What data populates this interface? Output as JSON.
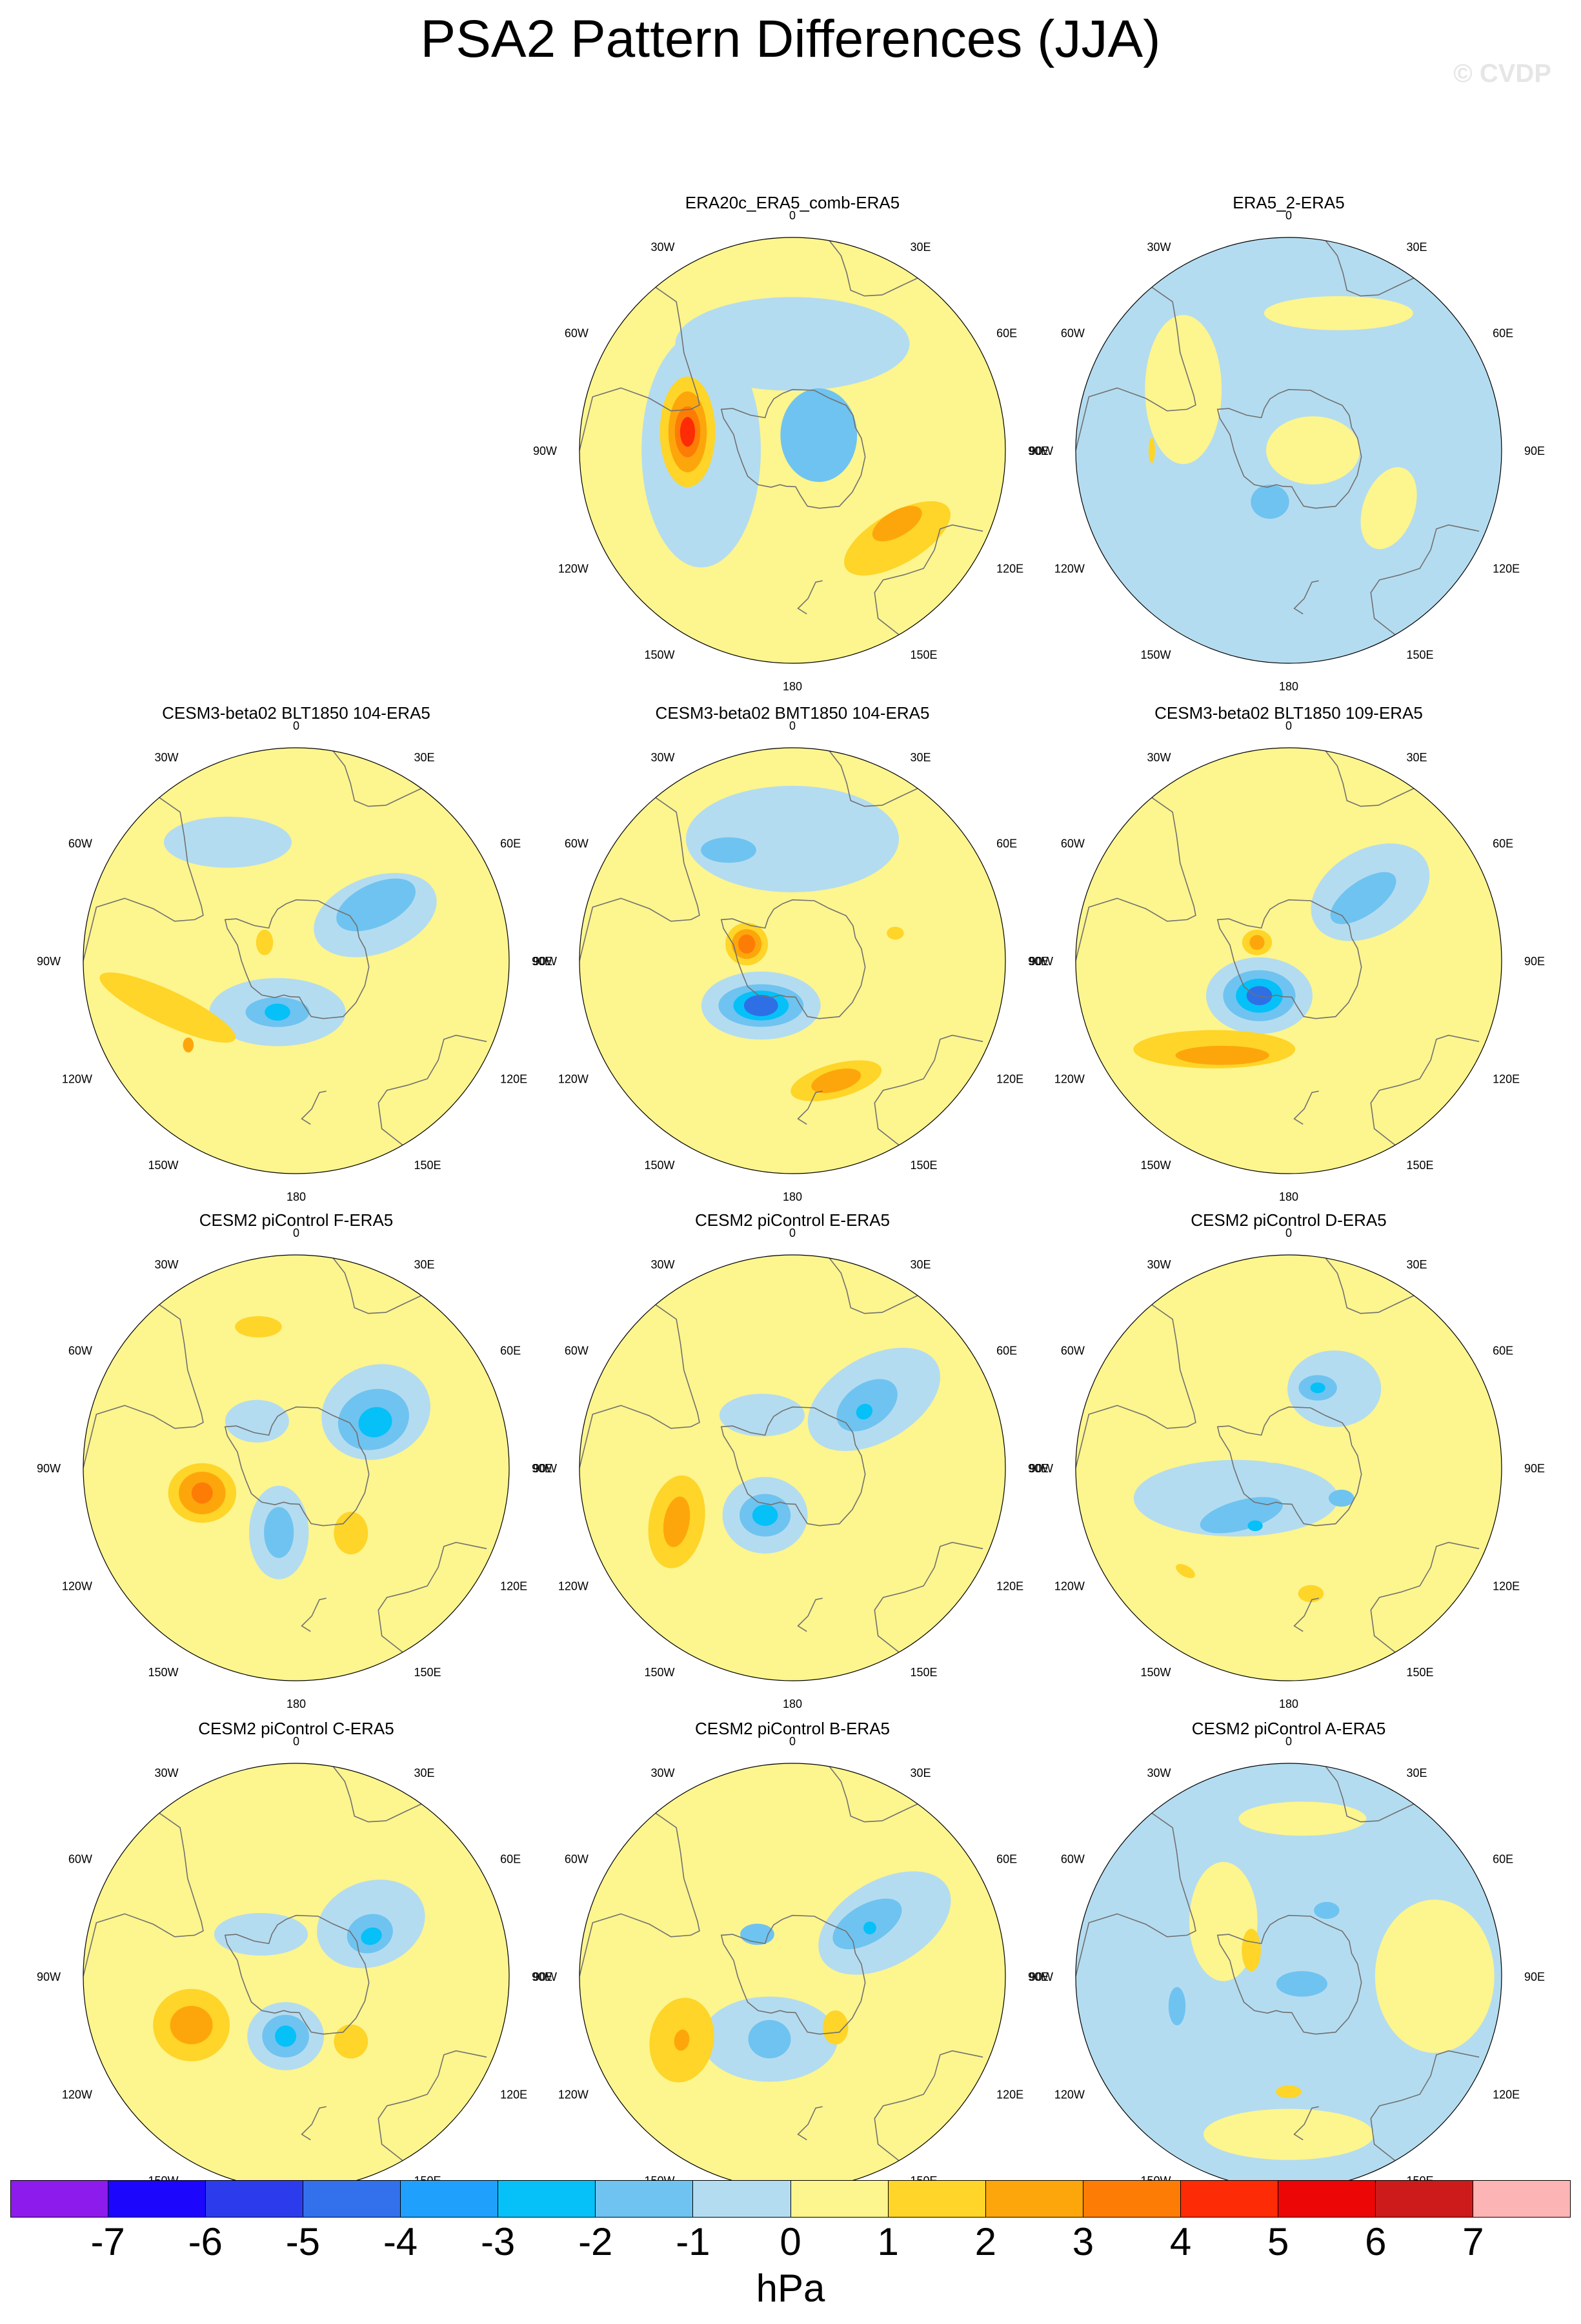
{
  "title": "PSA2 Pattern Differences (JJA)",
  "watermark": "© CVDP",
  "lon_labels": [
    "0",
    "30E",
    "60E",
    "90E",
    "120E",
    "150E",
    "180",
    "150W",
    "120W",
    "90W",
    "60W",
    "30W"
  ],
  "colors": {
    "yellow_light": "#fdf58e",
    "yellow": "#fed528",
    "orange": "#fda60b",
    "orange_dark": "#fd7c06",
    "red": "#fd2b06",
    "blue_light": "#b4dcf0",
    "blue": "#6fc3f0",
    "blue_medium": "#06c0f8",
    "blue_deep": "#2f6fe6",
    "coast": "#707070"
  },
  "panels": [
    {
      "title": "ERA20c_ERA5_comb-ERA5",
      "row": 0,
      "col": 1,
      "background": "yellow_light",
      "features": [
        {
          "type": "blue_light",
          "lon": 0,
          "lat": -55,
          "rx": 0.55,
          "ry": 0.22,
          "rot": 0
        },
        {
          "type": "blue_light",
          "lon": 270,
          "lat": -60,
          "rx": 0.28,
          "ry": 0.55,
          "rot": 0
        },
        {
          "type": "blue",
          "lon": 60,
          "lat": -80,
          "rx": 0.18,
          "ry": 0.22,
          "rot": 0
        },
        {
          "type": "yellow",
          "lon": 280,
          "lat": -55,
          "rx": 0.13,
          "ry": 0.26,
          "rot": 0
        },
        {
          "type": "orange",
          "lon": 280,
          "lat": -55,
          "rx": 0.09,
          "ry": 0.19,
          "rot": 0
        },
        {
          "type": "orange_dark",
          "lon": 280,
          "lat": -55,
          "rx": 0.06,
          "ry": 0.12,
          "rot": 0
        },
        {
          "type": "red",
          "lon": 280,
          "lat": -55,
          "rx": 0.035,
          "ry": 0.07,
          "rot": 0
        },
        {
          "type": "yellow",
          "lon": 130,
          "lat": -45,
          "rx": 0.28,
          "ry": 0.12,
          "rot": -30
        },
        {
          "type": "orange",
          "lon": 125,
          "lat": -48,
          "rx": 0.13,
          "ry": 0.06,
          "rot": -30
        }
      ]
    },
    {
      "title": "ERA5_2-ERA5",
      "row": 0,
      "col": 2,
      "background": "blue_light",
      "features": [
        {
          "type": "yellow_light",
          "lon": 90,
          "lat": -82,
          "rx": 0.22,
          "ry": 0.16,
          "rot": 0
        },
        {
          "type": "yellow_light",
          "lon": 300,
          "lat": -50,
          "rx": 0.18,
          "ry": 0.35,
          "rot": 0
        },
        {
          "type": "yellow_light",
          "lon": 20,
          "lat": -42,
          "rx": 0.35,
          "ry": 0.08,
          "rot": 0
        },
        {
          "type": "yellow_light",
          "lon": 120,
          "lat": -52,
          "rx": 0.12,
          "ry": 0.2,
          "rot": 20
        },
        {
          "type": "blue",
          "lon": 200,
          "lat": -72,
          "rx": 0.09,
          "ry": 0.08,
          "rot": 0
        },
        {
          "type": "yellow",
          "lon": 270,
          "lat": -45,
          "rx": 0.015,
          "ry": 0.06,
          "rot": 0
        }
      ]
    },
    {
      "title": "CESM3-beta02 BLT1850 104-ERA5",
      "row": 1,
      "col": 0,
      "background": "yellow_light",
      "features": [
        {
          "type": "blue_light",
          "lon": 60,
          "lat": -60,
          "rx": 0.3,
          "ry": 0.18,
          "rot": -20
        },
        {
          "type": "blue_light",
          "lon": 200,
          "lat": -72,
          "rx": 0.32,
          "ry": 0.16,
          "rot": 0
        },
        {
          "type": "blue_light",
          "lon": 330,
          "lat": -45,
          "rx": 0.3,
          "ry": 0.12,
          "rot": 0
        },
        {
          "type": "blue",
          "lon": 55,
          "lat": -58,
          "rx": 0.2,
          "ry": 0.1,
          "rot": -25
        },
        {
          "type": "blue",
          "lon": 200,
          "lat": -72,
          "rx": 0.15,
          "ry": 0.07,
          "rot": 0
        },
        {
          "type": "blue_medium",
          "lon": 200,
          "lat": -72,
          "rx": 0.06,
          "ry": 0.04,
          "rot": 0
        },
        {
          "type": "yellow",
          "lon": 250,
          "lat": -45,
          "rx": 0.35,
          "ry": 0.08,
          "rot": 25
        },
        {
          "type": "yellow",
          "lon": 300,
          "lat": -78,
          "rx": 0.04,
          "ry": 0.06,
          "rot": 0
        },
        {
          "type": "orange",
          "lon": 232,
          "lat": -45,
          "rx": 0.025,
          "ry": 0.035,
          "rot": 0
        }
      ]
    },
    {
      "title": "CESM3-beta02 BMT1850 104-ERA5",
      "row": 1,
      "col": 1,
      "background": "yellow_light",
      "features": [
        {
          "type": "blue_light",
          "lon": 0,
          "lat": -50,
          "rx": 0.5,
          "ry": 0.25,
          "rot": 0
        },
        {
          "type": "blue_light",
          "lon": 215,
          "lat": -72,
          "rx": 0.28,
          "ry": 0.16,
          "rot": 0
        },
        {
          "type": "blue",
          "lon": 330,
          "lat": -48,
          "rx": 0.13,
          "ry": 0.06,
          "rot": 0
        },
        {
          "type": "blue",
          "lon": 215,
          "lat": -72,
          "rx": 0.2,
          "ry": 0.1,
          "rot": 0
        },
        {
          "type": "blue_medium",
          "lon": 215,
          "lat": -72,
          "rx": 0.13,
          "ry": 0.07,
          "rot": 0
        },
        {
          "type": "blue_deep",
          "lon": 215,
          "lat": -72,
          "rx": 0.08,
          "ry": 0.05,
          "rot": 0
        },
        {
          "type": "yellow",
          "lon": 290,
          "lat": -74,
          "rx": 0.1,
          "ry": 0.1,
          "rot": 0
        },
        {
          "type": "orange",
          "lon": 290,
          "lat": -74,
          "rx": 0.07,
          "ry": 0.07,
          "rot": 0
        },
        {
          "type": "orange_dark",
          "lon": 290,
          "lat": -74,
          "rx": 0.04,
          "ry": 0.045,
          "rot": 0
        },
        {
          "type": "yellow",
          "lon": 160,
          "lat": -48,
          "rx": 0.22,
          "ry": 0.08,
          "rot": -15
        },
        {
          "type": "orange",
          "lon": 160,
          "lat": -48,
          "rx": 0.12,
          "ry": 0.05,
          "rot": -15
        },
        {
          "type": "yellow",
          "lon": 75,
          "lat": -55,
          "rx": 0.04,
          "ry": 0.03,
          "rot": 0
        }
      ]
    },
    {
      "title": "CESM3-beta02 BLT1850 109-ERA5",
      "row": 1,
      "col": 2,
      "background": "yellow_light",
      "features": [
        {
          "type": "blue_light",
          "lon": 50,
          "lat": -55,
          "rx": 0.3,
          "ry": 0.2,
          "rot": -30
        },
        {
          "type": "blue_light",
          "lon": 220,
          "lat": -75,
          "rx": 0.25,
          "ry": 0.18,
          "rot": 0
        },
        {
          "type": "blue",
          "lon": 50,
          "lat": -58,
          "rx": 0.18,
          "ry": 0.08,
          "rot": -35
        },
        {
          "type": "blue",
          "lon": 220,
          "lat": -75,
          "rx": 0.17,
          "ry": 0.12,
          "rot": 0
        },
        {
          "type": "blue_medium",
          "lon": 220,
          "lat": -75,
          "rx": 0.11,
          "ry": 0.08,
          "rot": 0
        },
        {
          "type": "blue_deep",
          "lon": 220,
          "lat": -75,
          "rx": 0.06,
          "ry": 0.045,
          "rot": 0
        },
        {
          "type": "yellow",
          "lon": 220,
          "lat": -52,
          "rx": 0.38,
          "ry": 0.09,
          "rot": 0
        },
        {
          "type": "orange",
          "lon": 215,
          "lat": -52,
          "rx": 0.22,
          "ry": 0.045,
          "rot": 0
        },
        {
          "type": "yellow",
          "lon": 300,
          "lat": -78,
          "rx": 0.07,
          "ry": 0.06,
          "rot": 0
        },
        {
          "type": "orange",
          "lon": 300,
          "lat": -78,
          "rx": 0.035,
          "ry": 0.035,
          "rot": 0
        }
      ]
    },
    {
      "title": "CESM2 piControl F-ERA5",
      "row": 2,
      "col": 0,
      "background": "yellow_light",
      "features": [
        {
          "type": "blue_light",
          "lon": 55,
          "lat": -58,
          "rx": 0.26,
          "ry": 0.22,
          "rot": -20
        },
        {
          "type": "blue",
          "lon": 58,
          "lat": -60,
          "rx": 0.17,
          "ry": 0.14,
          "rot": -20
        },
        {
          "type": "blue_medium",
          "lon": 60,
          "lat": -60,
          "rx": 0.08,
          "ry": 0.07,
          "rot": -20
        },
        {
          "type": "blue_light",
          "lon": 195,
          "lat": -68,
          "rx": 0.14,
          "ry": 0.22,
          "rot": 0
        },
        {
          "type": "blue",
          "lon": 195,
          "lat": -68,
          "rx": 0.07,
          "ry": 0.12,
          "rot": 0
        },
        {
          "type": "blue_light",
          "lon": 320,
          "lat": -70,
          "rx": 0.15,
          "ry": 0.1,
          "rot": 0
        },
        {
          "type": "yellow",
          "lon": 255,
          "lat": -58,
          "rx": 0.16,
          "ry": 0.14,
          "rot": 0
        },
        {
          "type": "orange",
          "lon": 255,
          "lat": -58,
          "rx": 0.11,
          "ry": 0.1,
          "rot": 0
        },
        {
          "type": "orange_dark",
          "lon": 255,
          "lat": -58,
          "rx": 0.05,
          "ry": 0.05,
          "rot": 0
        },
        {
          "type": "yellow",
          "lon": 140,
          "lat": -62,
          "rx": 0.08,
          "ry": 0.1,
          "rot": 0
        },
        {
          "type": "yellow",
          "lon": 345,
          "lat": -42,
          "rx": 0.11,
          "ry": 0.05,
          "rot": 0
        }
      ]
    },
    {
      "title": "CESM2 piControl E-ERA5",
      "row": 2,
      "col": 1,
      "background": "yellow_light",
      "features": [
        {
          "type": "blue_light",
          "lon": 50,
          "lat": -55,
          "rx": 0.34,
          "ry": 0.2,
          "rot": -30
        },
        {
          "type": "blue",
          "lon": 50,
          "lat": -58,
          "rx": 0.16,
          "ry": 0.1,
          "rot": -35
        },
        {
          "type": "blue_medium",
          "lon": 52,
          "lat": -60,
          "rx": 0.04,
          "ry": 0.035,
          "rot": -35
        },
        {
          "type": "blue_light",
          "lon": 210,
          "lat": -72,
          "rx": 0.2,
          "ry": 0.18,
          "rot": 0
        },
        {
          "type": "blue",
          "lon": 210,
          "lat": -72,
          "rx": 0.12,
          "ry": 0.1,
          "rot": 0
        },
        {
          "type": "blue_medium",
          "lon": 210,
          "lat": -72,
          "rx": 0.06,
          "ry": 0.05,
          "rot": 0
        },
        {
          "type": "blue_light",
          "lon": 330,
          "lat": -70,
          "rx": 0.2,
          "ry": 0.1,
          "rot": 0
        },
        {
          "type": "yellow",
          "lon": 245,
          "lat": -48,
          "rx": 0.13,
          "ry": 0.22,
          "rot": 10
        },
        {
          "type": "orange",
          "lon": 245,
          "lat": -48,
          "rx": 0.06,
          "ry": 0.12,
          "rot": 10
        }
      ]
    },
    {
      "title": "CESM2 piControl D-ERA5",
      "row": 2,
      "col": 2,
      "background": "yellow_light",
      "features": [
        {
          "type": "blue_light",
          "lon": 30,
          "lat": -60,
          "rx": 0.22,
          "ry": 0.18,
          "rot": 0
        },
        {
          "type": "blue_light",
          "lon": 240,
          "lat": -70,
          "rx": 0.48,
          "ry": 0.18,
          "rot": 0
        },
        {
          "type": "blue",
          "lon": 20,
          "lat": -62,
          "rx": 0.09,
          "ry": 0.06,
          "rot": 0
        },
        {
          "type": "blue_medium",
          "lon": 20,
          "lat": -62,
          "rx": 0.035,
          "ry": 0.025,
          "rot": 0
        },
        {
          "type": "blue",
          "lon": 225,
          "lat": -68,
          "rx": 0.2,
          "ry": 0.07,
          "rot": -15
        },
        {
          "type": "blue_medium",
          "lon": 210,
          "lat": -68,
          "rx": 0.035,
          "ry": 0.025,
          "rot": 0
        },
        {
          "type": "blue",
          "lon": 120,
          "lat": -70,
          "rx": 0.06,
          "ry": 0.04,
          "rot": 0
        },
        {
          "type": "yellow_light",
          "lon": 330,
          "lat": -80,
          "rx": 0.12,
          "ry": 0.1,
          "rot": 0
        },
        {
          "type": "yellow",
          "lon": 170,
          "lat": -48,
          "rx": 0.06,
          "ry": 0.04,
          "rot": 0
        },
        {
          "type": "yellow",
          "lon": 225,
          "lat": -42,
          "rx": 0.05,
          "ry": 0.025,
          "rot": 30
        }
      ]
    },
    {
      "title": "CESM2 piControl C-ERA5",
      "row": 3,
      "col": 0,
      "background": "yellow_light",
      "features": [
        {
          "type": "blue_light",
          "lon": 55,
          "lat": -60,
          "rx": 0.26,
          "ry": 0.2,
          "rot": -20
        },
        {
          "type": "blue",
          "lon": 60,
          "lat": -62,
          "rx": 0.11,
          "ry": 0.09,
          "rot": -20
        },
        {
          "type": "blue_medium",
          "lon": 62,
          "lat": -62,
          "rx": 0.05,
          "ry": 0.04,
          "rot": -20
        },
        {
          "type": "blue_light",
          "lon": 190,
          "lat": -70,
          "rx": 0.18,
          "ry": 0.16,
          "rot": 0
        },
        {
          "type": "blue",
          "lon": 190,
          "lat": -70,
          "rx": 0.11,
          "ry": 0.1,
          "rot": 0
        },
        {
          "type": "blue_medium",
          "lon": 190,
          "lat": -70,
          "rx": 0.05,
          "ry": 0.05,
          "rot": 0
        },
        {
          "type": "blue_light",
          "lon": 320,
          "lat": -72,
          "rx": 0.22,
          "ry": 0.1,
          "rot": 0
        },
        {
          "type": "yellow",
          "lon": 245,
          "lat": -52,
          "rx": 0.18,
          "ry": 0.17,
          "rot": 0
        },
        {
          "type": "orange",
          "lon": 245,
          "lat": -52,
          "rx": 0.1,
          "ry": 0.09,
          "rot": 0
        },
        {
          "type": "yellow",
          "lon": 140,
          "lat": -62,
          "rx": 0.08,
          "ry": 0.08,
          "rot": 0
        }
      ]
    },
    {
      "title": "CESM2 piControl B-ERA5",
      "row": 3,
      "col": 1,
      "background": "yellow_light",
      "features": [
        {
          "type": "blue_light",
          "lon": 60,
          "lat": -55,
          "rx": 0.34,
          "ry": 0.2,
          "rot": -30
        },
        {
          "type": "blue",
          "lon": 55,
          "lat": -60,
          "rx": 0.18,
          "ry": 0.09,
          "rot": -30
        },
        {
          "type": "blue_medium",
          "lon": 58,
          "lat": -60,
          "rx": 0.03,
          "ry": 0.03,
          "rot": 0
        },
        {
          "type": "blue_light",
          "lon": 200,
          "lat": -68,
          "rx": 0.32,
          "ry": 0.2,
          "rot": 0
        },
        {
          "type": "blue",
          "lon": 200,
          "lat": -68,
          "rx": 0.1,
          "ry": 0.09,
          "rot": 0
        },
        {
          "type": "blue",
          "lon": 320,
          "lat": -72,
          "rx": 0.08,
          "ry": 0.05,
          "rot": 0
        },
        {
          "type": "yellow",
          "lon": 240,
          "lat": -48,
          "rx": 0.15,
          "ry": 0.2,
          "rot": 10
        },
        {
          "type": "orange",
          "lon": 240,
          "lat": -48,
          "rx": 0.035,
          "ry": 0.05,
          "rot": 10
        },
        {
          "type": "yellow",
          "lon": 140,
          "lat": -68,
          "rx": 0.06,
          "ry": 0.08,
          "rot": 0
        }
      ]
    },
    {
      "title": "CESM2 piControl A-ERA5",
      "row": 3,
      "col": 2,
      "background": "blue_light",
      "features": [
        {
          "type": "yellow_light",
          "lon": 90,
          "lat": -42,
          "rx": 0.28,
          "ry": 0.36,
          "rot": 0
        },
        {
          "type": "yellow_light",
          "lon": 310,
          "lat": -62,
          "rx": 0.16,
          "ry": 0.28,
          "rot": 0
        },
        {
          "type": "yellow_light",
          "lon": 180,
          "lat": -38,
          "rx": 0.4,
          "ry": 0.12,
          "rot": 0
        },
        {
          "type": "yellow_light",
          "lon": 5,
          "lat": -38,
          "rx": 0.3,
          "ry": 0.08,
          "rot": 0
        },
        {
          "type": "blue",
          "lon": 30,
          "lat": -65,
          "rx": 0.06,
          "ry": 0.04,
          "rot": 0
        },
        {
          "type": "blue",
          "lon": 120,
          "lat": -85,
          "rx": 0.12,
          "ry": 0.06,
          "rot": 0
        },
        {
          "type": "blue",
          "lon": 255,
          "lat": -52,
          "rx": 0.04,
          "ry": 0.09,
          "rot": 0
        },
        {
          "type": "yellow",
          "lon": 305,
          "lat": -75,
          "rx": 0.045,
          "ry": 0.1,
          "rot": 0
        },
        {
          "type": "yellow",
          "lon": 180,
          "lat": -52,
          "rx": 0.06,
          "ry": 0.03,
          "rot": 0
        }
      ]
    }
  ],
  "colorbar": {
    "colors": [
      "#8d1cec",
      "#1c06fc",
      "#2c3cec",
      "#3270ec",
      "#1ea0fc",
      "#06c0f8",
      "#6fc3f0",
      "#b4dcf0",
      "#fdf58e",
      "#fed528",
      "#fda60b",
      "#fd7c06",
      "#fd2b06",
      "#ec0606",
      "#cd1b1b",
      "#fcb4b4"
    ],
    "labels": [
      "-7",
      "-6",
      "-5",
      "-4",
      "-3",
      "-2",
      "-1",
      "0",
      "1",
      "2",
      "3",
      "4",
      "5",
      "6",
      "7"
    ],
    "units": "hPa"
  }
}
